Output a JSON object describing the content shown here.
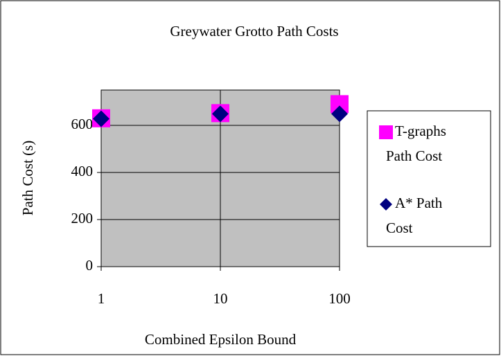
{
  "chart_data": {
    "type": "scatter",
    "title": "Greywater Grotto Path Costs",
    "xlabel": "Combined Epsilon Bound",
    "ylabel": "Path Cost (s)",
    "xscale": "log",
    "xlim": [
      1,
      100
    ],
    "xticks": [
      1,
      10,
      100
    ],
    "ylim": [
      0,
      750
    ],
    "yticks": [
      0,
      200,
      400,
      600
    ],
    "grid": true,
    "background": "#c0c0c0",
    "legend": "right",
    "series": [
      {
        "name": "T-graphs Path Cost",
        "color": "#ff00ff",
        "marker": "square",
        "x": [
          1,
          10,
          100
        ],
        "values": [
          630,
          652,
          690
        ]
      },
      {
        "name": "A* Path Cost",
        "color": "#000080",
        "marker": "diamond",
        "x": [
          1,
          10,
          100
        ],
        "values": [
          628,
          649,
          649
        ]
      }
    ]
  }
}
